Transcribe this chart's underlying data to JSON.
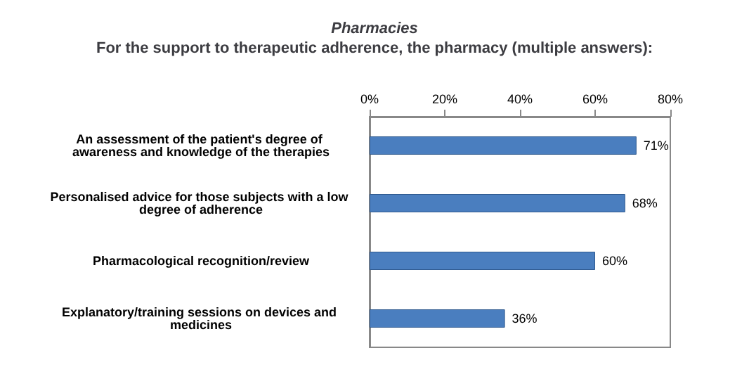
{
  "chart_data": {
    "type": "bar",
    "orientation": "horizontal",
    "title": "Pharmacies",
    "subtitle": "For the support to therapeutic adherence, the pharmacy (multiple answers):",
    "categories": [
      "An assessment of the patient's degree of awareness and knowledge of the therapies",
      "Personalised advice for those subjects with a low degree of adherence",
      "Pharmacological recognition/review",
      "Explanatory/training sessions on devices and medicines"
    ],
    "values": [
      71,
      68,
      60,
      36
    ],
    "color": "#4a7ebf",
    "value_labels": [
      "71%",
      "68%",
      "60%",
      "36%"
    ],
    "xlim": [
      0,
      80
    ],
    "xticks": [
      {
        "value": 0,
        "label": "0%"
      },
      {
        "value": 20,
        "label": "20%"
      },
      {
        "value": 40,
        "label": "40%"
      },
      {
        "value": 60,
        "label": "60%"
      },
      {
        "value": 80,
        "label": "80%"
      }
    ],
    "grid": false
  }
}
